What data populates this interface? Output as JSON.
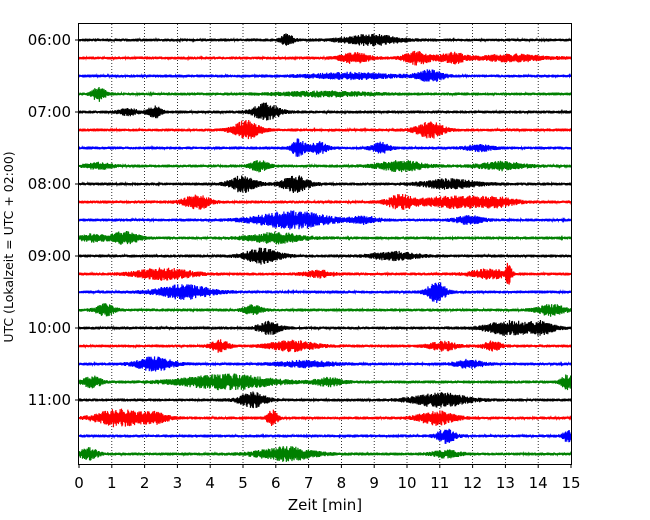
{
  "chart_data": {
    "type": "line",
    "title": "",
    "xlabel": "Zeit  [min]",
    "ylabel": "UTC (Lokalzeit = UTC + 02:00)",
    "xlim": [
      0,
      15
    ],
    "x_ticks": [
      "0",
      "1",
      "2",
      "3",
      "4",
      "5",
      "6",
      "7",
      "8",
      "9",
      "10",
      "11",
      "12",
      "13",
      "14",
      "15"
    ],
    "y_ticks": [
      "06:00",
      "07:00",
      "08:00",
      "09:00",
      "10:00",
      "11:00"
    ],
    "y_tick_trace_index": [
      0,
      4,
      8,
      12,
      16,
      20
    ],
    "trace_interval_min": 15,
    "trace_count": 24,
    "grid": "vertical dotted",
    "series_colors": [
      "#000000",
      "#ff0000",
      "#0000ff",
      "#008000"
    ],
    "traces": [
      {
        "color": "#000000",
        "base_amplitude": 1.0,
        "events": [
          [
            6.35,
            1.0,
            0.14
          ],
          [
            8.9,
            0.9,
            0.6
          ]
        ]
      },
      {
        "color": "#ff0000",
        "base_amplitude": 1.0,
        "events": [
          [
            8.4,
            1.0,
            0.3
          ],
          [
            10.3,
            1.1,
            0.3
          ],
          [
            11.4,
            0.9,
            0.3
          ],
          [
            13.2,
            0.6,
            0.7
          ]
        ]
      },
      {
        "color": "#0000ff",
        "base_amplitude": 1.0,
        "events": [
          [
            8.3,
            0.5,
            0.9
          ],
          [
            10.7,
            1.0,
            0.3
          ]
        ]
      },
      {
        "color": "#008000",
        "base_amplitude": 1.0,
        "events": [
          [
            0.6,
            1.2,
            0.15
          ],
          [
            7.5,
            0.4,
            1.0
          ]
        ]
      },
      {
        "color": "#000000",
        "base_amplitude": 1.0,
        "events": [
          [
            1.5,
            0.6,
            0.2
          ],
          [
            2.3,
            1.0,
            0.15
          ],
          [
            5.7,
            1.5,
            0.3
          ]
        ]
      },
      {
        "color": "#ff0000",
        "base_amplitude": 1.0,
        "events": [
          [
            5.1,
            1.6,
            0.3
          ],
          [
            10.7,
            1.4,
            0.3
          ]
        ]
      },
      {
        "color": "#0000ff",
        "base_amplitude": 1.0,
        "events": [
          [
            6.7,
            1.5,
            0.15
          ],
          [
            7.3,
            1.0,
            0.2
          ],
          [
            9.2,
            0.9,
            0.2
          ],
          [
            12.2,
            0.5,
            0.3
          ]
        ]
      },
      {
        "color": "#008000",
        "base_amplitude": 1.0,
        "events": [
          [
            0.6,
            0.5,
            0.3
          ],
          [
            5.5,
            0.9,
            0.2
          ],
          [
            9.8,
            0.9,
            0.5
          ],
          [
            12.9,
            0.7,
            0.5
          ]
        ]
      },
      {
        "color": "#000000",
        "base_amplitude": 1.0,
        "events": [
          [
            5.0,
            1.4,
            0.3
          ],
          [
            6.6,
            1.4,
            0.3
          ],
          [
            11.3,
            0.8,
            0.6
          ]
        ]
      },
      {
        "color": "#ff0000",
        "base_amplitude": 1.0,
        "events": [
          [
            3.6,
            1.2,
            0.3
          ],
          [
            9.8,
            1.2,
            0.3
          ],
          [
            11.5,
            1.0,
            0.8
          ],
          [
            12.8,
            0.6,
            0.4
          ]
        ]
      },
      {
        "color": "#0000ff",
        "base_amplitude": 1.0,
        "events": [
          [
            6.5,
            1.5,
            0.8
          ],
          [
            8.7,
            0.6,
            0.3
          ],
          [
            11.9,
            0.7,
            0.3
          ]
        ]
      },
      {
        "color": "#008000",
        "base_amplitude": 1.0,
        "events": [
          [
            0.4,
            0.6,
            0.3
          ],
          [
            1.4,
            1.1,
            0.3
          ],
          [
            6.0,
            0.9,
            0.6
          ]
        ]
      },
      {
        "color": "#000000",
        "base_amplitude": 1.0,
        "events": [
          [
            5.6,
            1.3,
            0.4
          ],
          [
            9.6,
            0.7,
            0.5
          ]
        ]
      },
      {
        "color": "#ff0000",
        "base_amplitude": 1.0,
        "events": [
          [
            2.6,
            1.0,
            0.6
          ],
          [
            7.3,
            0.6,
            0.3
          ],
          [
            12.5,
            0.8,
            0.4
          ],
          [
            13.1,
            2.0,
            0.06
          ]
        ]
      },
      {
        "color": "#0000ff",
        "base_amplitude": 1.0,
        "events": [
          [
            3.2,
            1.2,
            0.6
          ],
          [
            10.9,
            1.8,
            0.2
          ]
        ]
      },
      {
        "color": "#008000",
        "base_amplitude": 1.0,
        "events": [
          [
            0.8,
            1.0,
            0.2
          ],
          [
            5.3,
            0.8,
            0.2
          ],
          [
            14.4,
            1.0,
            0.3
          ]
        ]
      },
      {
        "color": "#000000",
        "base_amplitude": 1.0,
        "events": [
          [
            5.8,
            1.1,
            0.25
          ],
          [
            13.1,
            1.2,
            0.5
          ],
          [
            14.1,
            1.0,
            0.3
          ]
        ]
      },
      {
        "color": "#ff0000",
        "base_amplitude": 1.0,
        "events": [
          [
            4.3,
            1.0,
            0.2
          ],
          [
            6.5,
            0.9,
            0.5
          ],
          [
            11.1,
            0.8,
            0.3
          ],
          [
            12.6,
            0.8,
            0.2
          ]
        ]
      },
      {
        "color": "#0000ff",
        "base_amplitude": 1.0,
        "events": [
          [
            2.3,
            1.2,
            0.4
          ],
          [
            6.9,
            0.5,
            0.6
          ],
          [
            11.9,
            0.7,
            0.3
          ]
        ]
      },
      {
        "color": "#008000",
        "base_amplitude": 1.0,
        "events": [
          [
            0.4,
            1.0,
            0.2
          ],
          [
            4.5,
            1.3,
            1.0
          ],
          [
            7.6,
            0.7,
            0.3
          ],
          [
            14.9,
            1.2,
            0.15
          ]
        ]
      },
      {
        "color": "#000000",
        "base_amplitude": 1.0,
        "events": [
          [
            5.3,
            1.3,
            0.3
          ],
          [
            11.0,
            1.2,
            0.6
          ]
        ]
      },
      {
        "color": "#ff0000",
        "base_amplitude": 1.0,
        "events": [
          [
            1.2,
            1.5,
            0.5
          ],
          [
            2.3,
            1.0,
            0.3
          ],
          [
            5.9,
            1.3,
            0.12
          ],
          [
            10.9,
            1.2,
            0.4
          ]
        ]
      },
      {
        "color": "#0000ff",
        "base_amplitude": 1.0,
        "events": [
          [
            11.2,
            1.2,
            0.2
          ],
          [
            14.9,
            1.0,
            0.1
          ]
        ]
      },
      {
        "color": "#008000",
        "base_amplitude": 1.0,
        "events": [
          [
            0.3,
            1.0,
            0.2
          ],
          [
            6.3,
            1.2,
            0.6
          ],
          [
            11.2,
            0.6,
            0.3
          ]
        ]
      }
    ]
  }
}
